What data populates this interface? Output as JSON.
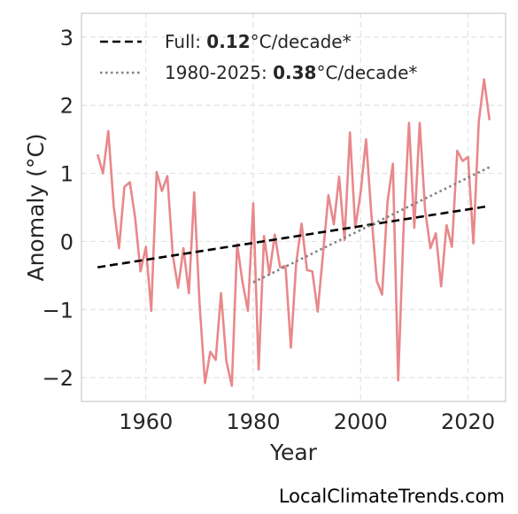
{
  "chart_data": {
    "type": "line",
    "xlabel": "Year",
    "ylabel": "Anomaly (°C)",
    "xlim": [
      1948,
      2027
    ],
    "ylim": [
      -2.35,
      3.35
    ],
    "xticks": [
      1960,
      1980,
      2000,
      2020
    ],
    "yticks": [
      -2,
      -1,
      0,
      1,
      2,
      3
    ],
    "ytick_labels": [
      "−2",
      "−1",
      "0",
      "1",
      "2",
      "3"
    ],
    "grid": true,
    "legend_position": "top-left",
    "series": [
      {
        "color": "#e8888b",
        "x": [
          1951,
          1952,
          1953,
          1954,
          1955,
          1956,
          1957,
          1958,
          1959,
          1960,
          1961,
          1962,
          1963,
          1964,
          1965,
          1966,
          1967,
          1968,
          1969,
          1970,
          1971,
          1972,
          1973,
          1974,
          1975,
          1976,
          1977,
          1978,
          1979,
          1980,
          1981,
          1982,
          1983,
          1984,
          1985,
          1986,
          1987,
          1988,
          1989,
          1990,
          1991,
          1992,
          1993,
          1994,
          1995,
          1996,
          1997,
          1998,
          1999,
          2000,
          2001,
          2002,
          2003,
          2004,
          2005,
          2006,
          2007,
          2008,
          2009,
          2010,
          2011,
          2012,
          2013,
          2014,
          2015,
          2016,
          2017,
          2018,
          2019,
          2020,
          2021,
          2022,
          2023,
          2024
        ],
        "values": [
          1.28,
          1.0,
          1.62,
          0.52,
          -0.1,
          0.8,
          0.87,
          0.35,
          -0.44,
          -0.08,
          -1.02,
          1.02,
          0.74,
          0.96,
          -0.2,
          -0.68,
          -0.1,
          -0.76,
          0.72,
          -0.92,
          -2.08,
          -1.62,
          -1.74,
          -0.76,
          -1.76,
          -2.12,
          -0.04,
          -0.6,
          -1.02,
          0.56,
          -1.88,
          0.08,
          -0.48,
          0.1,
          -0.38,
          -0.36,
          -1.56,
          -0.32,
          0.26,
          -0.42,
          -0.44,
          -1.03,
          -0.18,
          0.68,
          0.25,
          0.95,
          0.02,
          1.6,
          0.2,
          0.72,
          1.5,
          0.4,
          -0.58,
          -0.78,
          0.58,
          1.14,
          -2.04,
          0.2,
          1.74,
          0.2,
          1.74,
          0.46,
          -0.1,
          0.12,
          -0.66,
          0.24,
          -0.08,
          1.33,
          1.18,
          1.24,
          -0.03,
          1.76,
          2.38,
          1.78
        ]
      }
    ],
    "trendlines": [
      {
        "label_prefix": "Full: ",
        "label_value": "0.12",
        "label_suffix": "°C/decade*",
        "style": "dashed",
        "color": "#000000",
        "x": [
          1951,
          2024
        ],
        "values": [
          -0.38,
          0.52
        ]
      },
      {
        "label_prefix": "1980-2025: ",
        "label_value": "0.38",
        "label_suffix": "°C/decade*",
        "style": "dotted",
        "color": "#808080",
        "x": [
          1980,
          2024
        ],
        "values": [
          -0.6,
          1.09
        ]
      }
    ]
  },
  "credit": "LocalClimateTrends.com"
}
